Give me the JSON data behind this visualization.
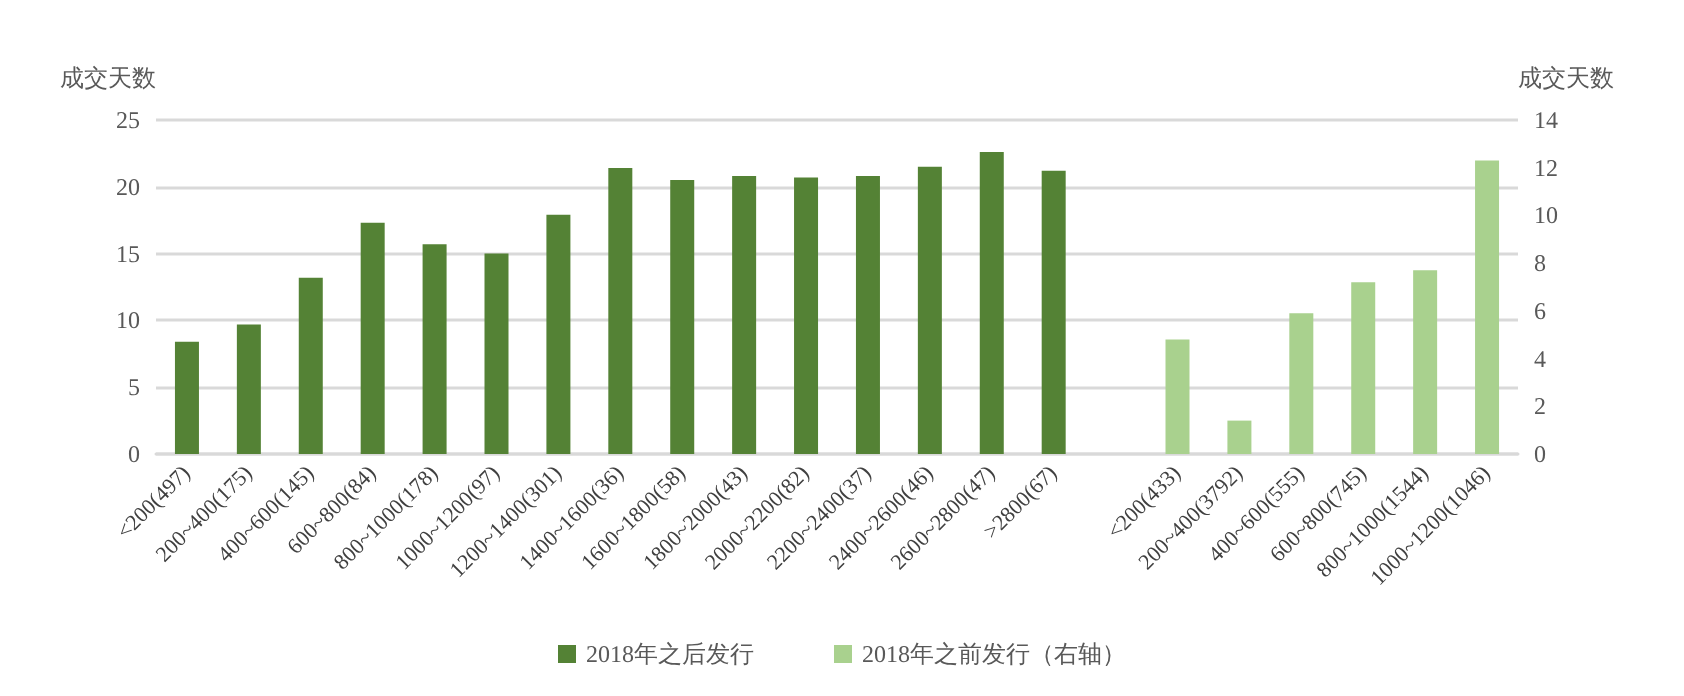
{
  "chart_data": {
    "type": "bar",
    "ylabel": "成交天数",
    "y2label": "成交天数",
    "categories": [
      "<200(497)",
      "200~400(175)",
      "400~600(145)",
      "600~800(84)",
      "800~1000(178)",
      "1000~1200(97)",
      "1200~1400(301)",
      "1400~1600(36)",
      "1600~1800(58)",
      "1800~2000(43)",
      "2000~2200(82)",
      "2200~2400(37)",
      "2400~2600(46)",
      "2600~2800(47)",
      ">2800(67)",
      null,
      "<200(433)",
      "200~400(3792)",
      "400~600(555)",
      "600~800(745)",
      "800~1000(1544)",
      "1000~1200(1046)"
    ],
    "series": [
      {
        "name": "2018年之后发行",
        "color": "#548235",
        "values": [
          8.4,
          9.7,
          13.2,
          17.3,
          15.7,
          15.0,
          17.9,
          21.4,
          20.5,
          20.8,
          20.7,
          20.8,
          21.5,
          22.6,
          21.2,
          null,
          null,
          null,
          null,
          null,
          null,
          null
        ]
      },
      {
        "name": "2018年之前发行（右轴）",
        "color": "#a9d18e",
        "axis": "y2",
        "values": [
          null,
          null,
          null,
          null,
          null,
          null,
          null,
          null,
          null,
          null,
          null,
          null,
          null,
          null,
          null,
          null,
          4.8,
          1.4,
          5.9,
          7.2,
          7.7,
          12.3
        ]
      }
    ],
    "ylim": [
      0,
      25
    ],
    "yticks": [
      0,
      5,
      10,
      15,
      20,
      25
    ],
    "y2lim": [
      0,
      14
    ],
    "y2ticks": [
      0,
      2,
      4,
      6,
      8,
      10,
      12,
      14
    ],
    "grid": "y",
    "legend": "bottom"
  }
}
